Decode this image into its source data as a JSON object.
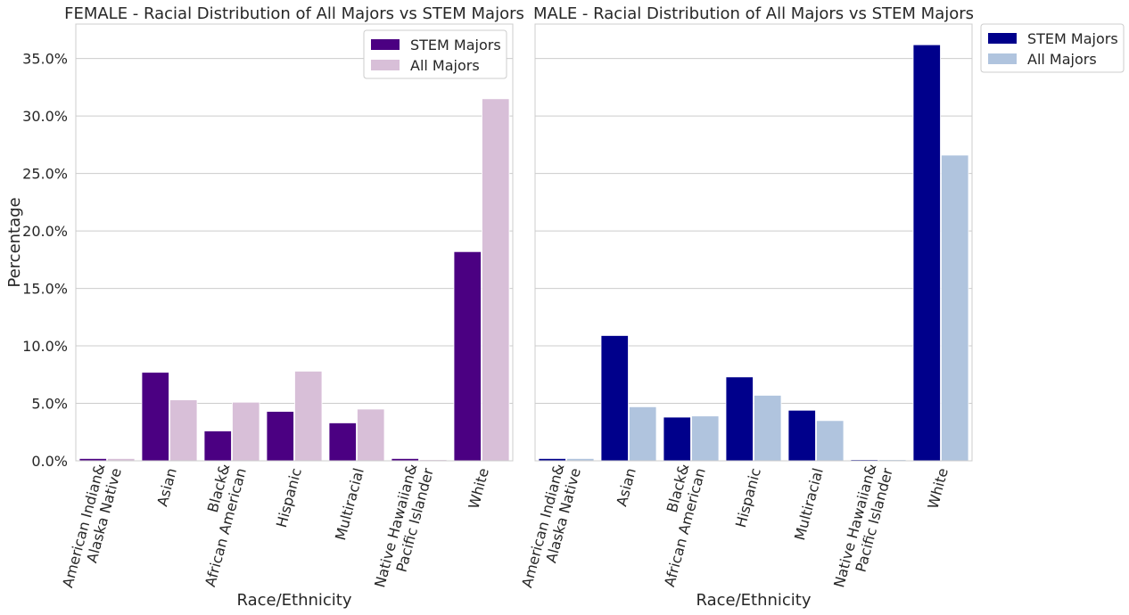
{
  "chart_data": [
    {
      "type": "bar",
      "title": "FEMALE - Racial Distribution of All Majors vs STEM Majors",
      "xlabel": "Race/Ethnicity",
      "ylabel": "Percentage",
      "ylim": [
        0,
        38
      ],
      "yticks": [
        "0.0%",
        "5.0%",
        "10.0%",
        "15.0%",
        "20.0%",
        "25.0%",
        "30.0%",
        "35.0%"
      ],
      "categories": [
        "American Indian&\nAlaska Native",
        "Asian",
        "Black&\nAfrican American",
        "Hispanic",
        "Multiracial",
        "Native Hawaiian&\nPacific Islander",
        "White"
      ],
      "series": [
        {
          "name": "STEM Majors",
          "color": "#4b0082",
          "values": [
            0.2,
            7.7,
            2.6,
            4.3,
            3.3,
            0.2,
            18.2
          ]
        },
        {
          "name": "All Majors",
          "color": "#d8bfd8",
          "values": [
            0.2,
            5.3,
            5.1,
            7.8,
            4.5,
            0.1,
            31.5
          ]
        }
      ],
      "legend": "top-right",
      "grid": true
    },
    {
      "type": "bar",
      "title": "MALE - Racial Distribution of All Majors vs STEM Majors",
      "xlabel": "Race/Ethnicity",
      "ylabel": "",
      "ylim": [
        0,
        38
      ],
      "categories": [
        "American Indian&\nAlaska Native",
        "Asian",
        "Black&\nAfrican American",
        "Hispanic",
        "Multiracial",
        "Native Hawaiian&\nPacific Islander",
        "White"
      ],
      "series": [
        {
          "name": "STEM Majors",
          "color": "#00008b",
          "values": [
            0.2,
            10.9,
            3.8,
            7.3,
            4.4,
            0.1,
            36.2
          ]
        },
        {
          "name": "All Majors",
          "color": "#b0c4de",
          "values": [
            0.2,
            4.7,
            3.9,
            5.7,
            3.5,
            0.1,
            26.6
          ]
        }
      ],
      "legend": "outside-right",
      "grid": true
    }
  ]
}
